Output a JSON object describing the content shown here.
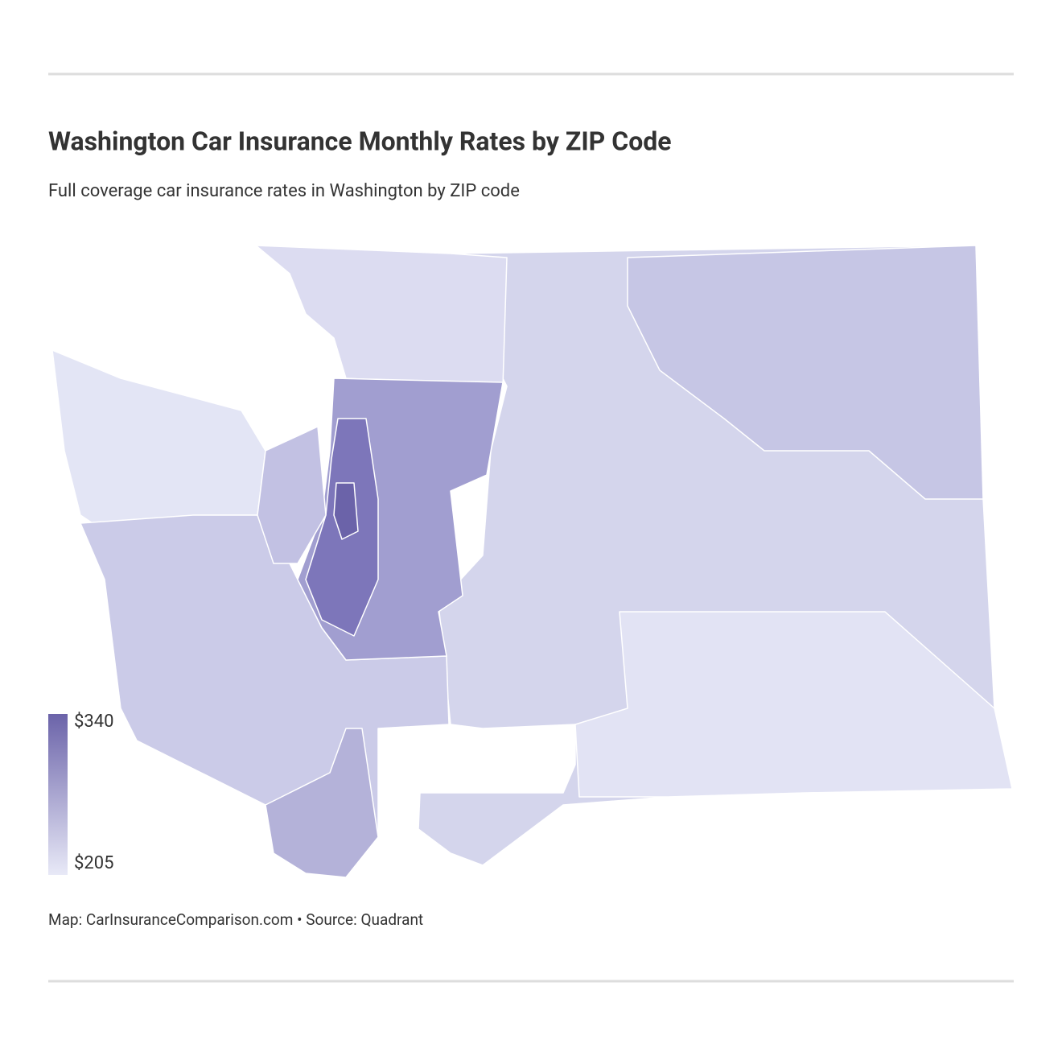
{
  "header": {
    "title": "Washington Car Insurance Monthly Rates by ZIP Code",
    "subtitle": "Full coverage car insurance rates in Washington by ZIP code"
  },
  "map": {
    "legend": {
      "max": {
        "value": 340,
        "label": "$340"
      },
      "min": {
        "value": 205,
        "label": "$205"
      },
      "colors": [
        "#e8e9f7",
        "#6b63a9"
      ]
    }
  },
  "footer": {
    "source": "Map: CarInsuranceComparison.com • Source: Quadrant"
  }
}
